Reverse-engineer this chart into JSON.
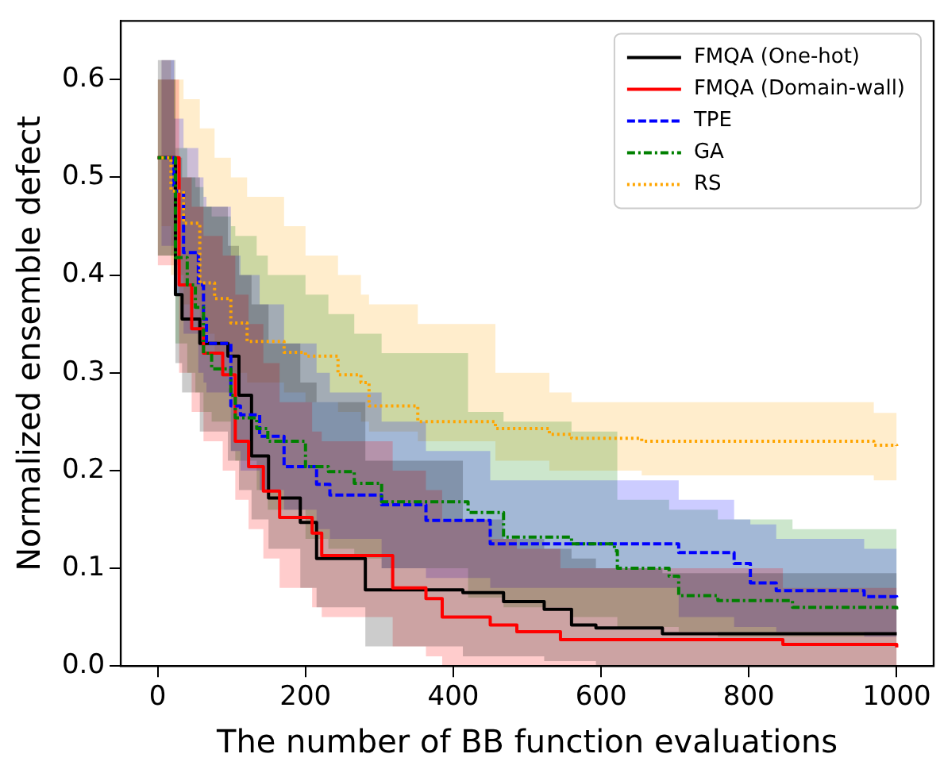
{
  "chart_data": {
    "type": "step",
    "xlabel": "The number of BB function evaluations",
    "ylabel": "Normalized ensemble defect",
    "xlim": [
      -50,
      1050
    ],
    "ylim": [
      0,
      0.66
    ],
    "xticks": [
      0,
      200,
      400,
      600,
      800,
      1000
    ],
    "yticks": [
      {
        "value": 0,
        "label": "0.0"
      },
      0.1,
      0.2,
      0.3,
      0.4,
      0.5,
      0.6
    ],
    "grid": false,
    "legend": "top right",
    "series": [
      {
        "name": "FMQA (One-hot)",
        "color": "#000000",
        "line_style": "solid",
        "x": [
          0,
          24,
          33,
          57,
          95,
          110,
          127,
          150,
          193,
          215,
          281,
          413,
          468,
          523,
          560,
          593,
          683,
          1000
        ],
        "values": [
          0.52,
          0.38,
          0.355,
          0.33,
          0.317,
          0.277,
          0.215,
          0.172,
          0.147,
          0.11,
          0.078,
          0.075,
          0.066,
          0.058,
          0.042,
          0.039,
          0.033,
          0.033
        ],
        "upper": [
          0.62,
          0.52,
          0.5,
          0.47,
          0.43,
          0.4,
          0.37,
          0.33,
          0.29,
          0.27,
          0.21,
          0.15,
          0.13,
          0.12,
          0.11,
          0.1,
          0.095,
          0.09
        ],
        "lower": [
          0.42,
          0.31,
          0.28,
          0.24,
          0.21,
          0.18,
          0.15,
          0.12,
          0.08,
          0.06,
          0.02,
          0.01,
          0.01,
          0.005,
          0.005,
          0.0,
          0.0,
          0.0
        ]
      },
      {
        "name": "FMQA (Domain-wall)",
        "color": "#ff0000",
        "line_style": "solid",
        "x": [
          0,
          29,
          46,
          62,
          88,
          105,
          123,
          143,
          165,
          209,
          222,
          318,
          363,
          385,
          450,
          486,
          545,
          846,
          1000
        ],
        "values": [
          0.52,
          0.39,
          0.345,
          0.32,
          0.298,
          0.23,
          0.204,
          0.179,
          0.152,
          0.136,
          0.113,
          0.08,
          0.069,
          0.05,
          0.042,
          0.035,
          0.027,
          0.022,
          0.019
        ],
        "upper": [
          0.6,
          0.5,
          0.47,
          0.44,
          0.42,
          0.38,
          0.35,
          0.31,
          0.27,
          0.24,
          0.23,
          0.2,
          0.18,
          0.15,
          0.13,
          0.12,
          0.1,
          0.08,
          0.08
        ],
        "lower": [
          0.41,
          0.3,
          0.26,
          0.23,
          0.2,
          0.17,
          0.14,
          0.11,
          0.08,
          0.06,
          0.05,
          0.02,
          0.01,
          0.0,
          0.0,
          0.0,
          0.0,
          0.0,
          0.0
        ]
      },
      {
        "name": "TPE",
        "color": "#0000ff",
        "line_style": "dashed",
        "x": [
          5,
          22,
          35,
          55,
          62,
          66,
          99,
          112,
          138,
          171,
          215,
          233,
          303,
          363,
          450,
          705,
          780,
          802,
          837,
          956,
          1000
        ],
        "values": [
          0.52,
          0.486,
          0.423,
          0.39,
          0.355,
          0.33,
          0.266,
          0.257,
          0.235,
          0.204,
          0.186,
          0.175,
          0.165,
          0.149,
          0.125,
          0.116,
          0.105,
          0.085,
          0.077,
          0.071,
          0.07
        ],
        "upper": [
          0.62,
          0.56,
          0.53,
          0.5,
          0.48,
          0.47,
          0.42,
          0.4,
          0.37,
          0.33,
          0.3,
          0.28,
          0.25,
          0.22,
          0.19,
          0.17,
          0.15,
          0.145,
          0.13,
          0.12,
          0.12
        ],
        "lower": [
          0.43,
          0.38,
          0.34,
          0.3,
          0.29,
          0.28,
          0.22,
          0.2,
          0.18,
          0.16,
          0.14,
          0.13,
          0.1,
          0.09,
          0.08,
          0.05,
          0.04,
          0.04,
          0.035,
          0.03,
          0.03
        ]
      },
      {
        "name": "GA",
        "color": "#008000",
        "line_style": "dashdot",
        "x": [
          0,
          24,
          40,
          51,
          62,
          73,
          99,
          105,
          134,
          149,
          200,
          231,
          266,
          303,
          420,
          468,
          560,
          618,
          622,
          692,
          705,
          758,
          859,
          1000
        ],
        "values": [
          0.52,
          0.418,
          0.39,
          0.367,
          0.32,
          0.304,
          0.277,
          0.254,
          0.243,
          0.23,
          0.204,
          0.199,
          0.187,
          0.168,
          0.157,
          0.132,
          0.125,
          0.118,
          0.1,
          0.092,
          0.072,
          0.067,
          0.06,
          0.058
        ],
        "upper": [
          0.6,
          0.53,
          0.5,
          0.49,
          0.47,
          0.46,
          0.45,
          0.44,
          0.42,
          0.4,
          0.38,
          0.36,
          0.34,
          0.32,
          0.26,
          0.25,
          0.24,
          0.24,
          0.17,
          0.16,
          0.16,
          0.15,
          0.14,
          0.13
        ],
        "lower": [
          0.42,
          0.33,
          0.3,
          0.28,
          0.26,
          0.25,
          0.22,
          0.21,
          0.18,
          0.16,
          0.13,
          0.12,
          0.11,
          0.1,
          0.07,
          0.06,
          0.05,
          0.05,
          0.04,
          0.04,
          0.035,
          0.03,
          0.03,
          0.03
        ]
      },
      {
        "name": "RS",
        "color": "#ffa500",
        "line_style": "dotted",
        "x": [
          5,
          18,
          35,
          57,
          77,
          99,
          121,
          171,
          200,
          244,
          275,
          286,
          352,
          457,
          530,
          560,
          655,
          969,
          1000
        ],
        "values": [
          0.52,
          0.486,
          0.453,
          0.392,
          0.376,
          0.351,
          0.332,
          0.321,
          0.317,
          0.298,
          0.29,
          0.266,
          0.25,
          0.243,
          0.237,
          0.233,
          0.23,
          0.226,
          0.225
        ],
        "upper": [
          0.62,
          0.6,
          0.58,
          0.55,
          0.52,
          0.5,
          0.48,
          0.45,
          0.42,
          0.4,
          0.38,
          0.37,
          0.35,
          0.3,
          0.28,
          0.27,
          0.27,
          0.259,
          0.259
        ],
        "lower": [
          0.45,
          0.4,
          0.37,
          0.34,
          0.32,
          0.3,
          0.29,
          0.28,
          0.27,
          0.26,
          0.25,
          0.24,
          0.23,
          0.21,
          0.2,
          0.2,
          0.195,
          0.19,
          0.19
        ]
      }
    ]
  }
}
